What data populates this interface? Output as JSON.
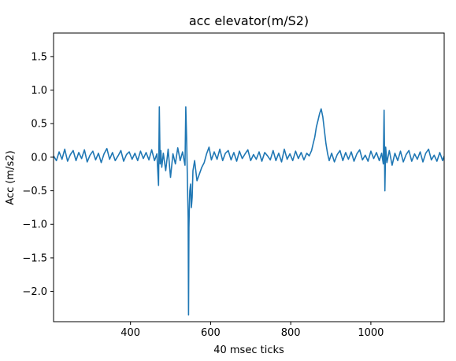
{
  "chart_data": {
    "type": "line",
    "title": "acc elevator(m/S2)",
    "xlabel": "40 msec ticks",
    "ylabel": "Acc (m/s2)",
    "xlim": [
      208,
      1183
    ],
    "ylim": [
      -2.45,
      1.85
    ],
    "xticks": [
      400,
      600,
      800,
      1000
    ],
    "yticks": [
      -2.0,
      -1.5,
      -1.0,
      -0.5,
      0.0,
      0.5,
      1.0,
      1.5
    ],
    "ytick_labels": [
      "−2.0",
      "−1.5",
      "−1.0",
      "−0.5",
      "0.0",
      "0.5",
      "1.0",
      "1.5"
    ],
    "grid": false,
    "series": [
      {
        "color": "#1f77b4",
        "x": [
          208,
          215,
          222,
          229,
          236,
          243,
          250,
          257,
          264,
          271,
          278,
          285,
          292,
          299,
          306,
          313,
          320,
          327,
          334,
          341,
          348,
          355,
          362,
          369,
          376,
          383,
          390,
          397,
          404,
          411,
          418,
          425,
          432,
          439,
          446,
          453,
          460,
          466,
          470,
          472,
          474,
          476,
          478,
          482,
          488,
          494,
          500,
          506,
          512,
          518,
          524,
          530,
          536,
          538,
          540,
          542,
          544,
          545,
          546,
          547,
          548,
          550,
          552,
          554,
          556,
          560,
          566,
          572,
          578,
          584,
          590,
          596,
          602,
          609,
          616,
          623,
          630,
          637,
          644,
          651,
          658,
          665,
          672,
          679,
          686,
          693,
          700,
          707,
          714,
          721,
          728,
          735,
          742,
          749,
          756,
          763,
          770,
          777,
          784,
          791,
          798,
          805,
          812,
          819,
          826,
          833,
          840,
          846,
          852,
          856,
          860,
          864,
          868,
          872,
          876,
          880,
          884,
          888,
          892,
          896,
          902,
          909,
          916,
          923,
          930,
          937,
          944,
          951,
          958,
          965,
          972,
          979,
          986,
          993,
          1000,
          1007,
          1014,
          1021,
          1027,
          1031,
          1033,
          1035,
          1037,
          1040,
          1046,
          1053,
          1060,
          1067,
          1074,
          1081,
          1088,
          1095,
          1102,
          1109,
          1116,
          1123,
          1130,
          1137,
          1144,
          1151,
          1158,
          1165,
          1172,
          1179,
          1183
        ],
        "y": [
          0.02,
          -0.05,
          0.08,
          -0.03,
          0.12,
          -0.06,
          0.04,
          0.1,
          -0.05,
          0.07,
          -0.02,
          0.11,
          -0.07,
          0.03,
          0.09,
          -0.04,
          0.06,
          -0.08,
          0.05,
          0.13,
          -0.03,
          0.07,
          -0.05,
          0.02,
          0.1,
          -0.06,
          0.04,
          0.08,
          -0.03,
          0.06,
          -0.05,
          0.09,
          -0.02,
          0.07,
          -0.04,
          0.11,
          -0.05,
          0.05,
          -0.42,
          0.75,
          -0.1,
          0.1,
          -0.15,
          0.06,
          -0.2,
          0.12,
          -0.3,
          0.05,
          -0.1,
          0.14,
          -0.05,
          0.08,
          -0.12,
          0.75,
          0.3,
          -0.3,
          -0.9,
          -2.35,
          -1.05,
          -0.7,
          -0.5,
          -0.4,
          -0.75,
          -0.6,
          -0.2,
          -0.05,
          -0.35,
          -0.25,
          -0.15,
          -0.08,
          0.05,
          0.15,
          -0.04,
          0.08,
          -0.03,
          0.12,
          -0.05,
          0.06,
          0.1,
          -0.04,
          0.07,
          -0.06,
          0.09,
          -0.02,
          0.05,
          0.11,
          -0.05,
          0.04,
          -0.03,
          0.08,
          -0.06,
          0.07,
          0.02,
          -0.04,
          0.1,
          -0.05,
          0.06,
          -0.07,
          0.12,
          -0.03,
          0.05,
          -0.05,
          0.09,
          -0.02,
          0.07,
          -0.04,
          0.06,
          0.02,
          0.1,
          0.2,
          0.3,
          0.45,
          0.55,
          0.65,
          0.72,
          0.6,
          0.4,
          0.2,
          0.05,
          -0.05,
          0.06,
          -0.07,
          0.04,
          0.1,
          -0.05,
          0.07,
          -0.03,
          0.08,
          -0.06,
          0.05,
          0.11,
          -0.04,
          0.03,
          -0.06,
          0.09,
          -0.02,
          0.07,
          -0.05,
          0.06,
          -0.1,
          0.7,
          -0.5,
          0.15,
          -0.08,
          0.1,
          -0.12,
          0.06,
          -0.05,
          0.09,
          -0.07,
          0.04,
          0.1,
          -0.06,
          0.05,
          -0.03,
          0.08,
          -0.07,
          0.06,
          0.12,
          -0.04,
          0.03,
          -0.06,
          0.07,
          -0.05,
          0.02
        ]
      }
    ]
  }
}
